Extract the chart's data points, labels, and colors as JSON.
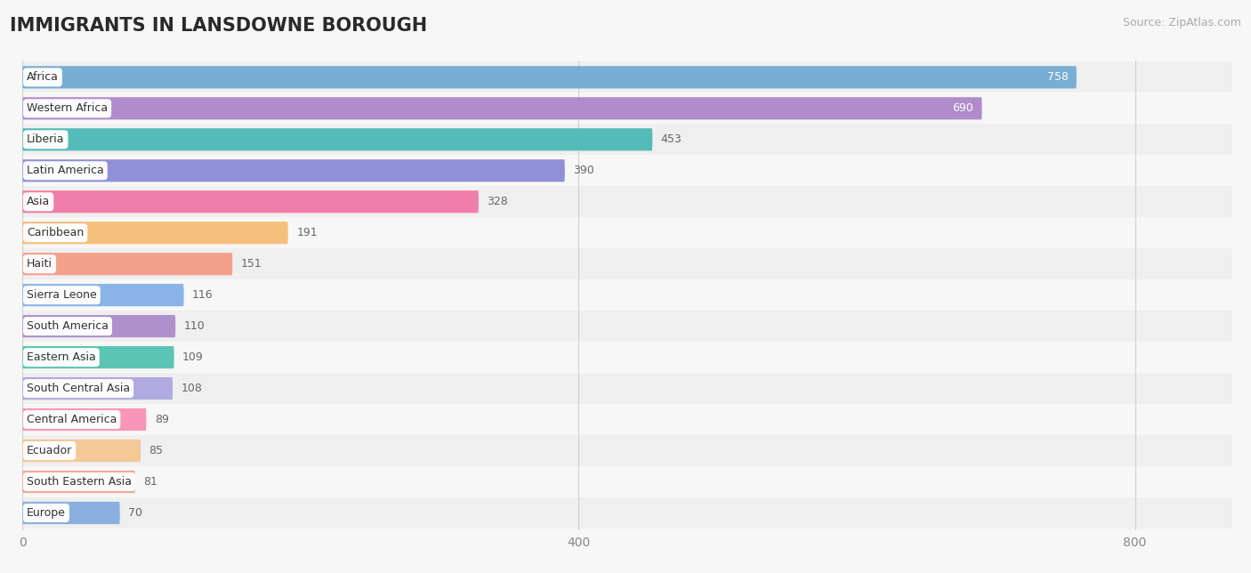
{
  "title": "IMMIGRANTS IN LANSDOWNE BOROUGH",
  "source": "Source: ZipAtlas.com",
  "categories": [
    "Africa",
    "Western Africa",
    "Liberia",
    "Latin America",
    "Asia",
    "Caribbean",
    "Haiti",
    "Sierra Leone",
    "South America",
    "Eastern Asia",
    "South Central Asia",
    "Central America",
    "Ecuador",
    "South Eastern Asia",
    "Europe"
  ],
  "values": [
    758,
    690,
    453,
    390,
    328,
    191,
    151,
    116,
    110,
    109,
    108,
    89,
    85,
    81,
    70
  ],
  "bar_colors": [
    "#78aed3",
    "#b08ccc",
    "#55bbb8",
    "#9090d8",
    "#f07eaa",
    "#f5c07c",
    "#f5a08c",
    "#8ab4e8",
    "#b090cc",
    "#5cc4b4",
    "#b0aae0",
    "#f895b8",
    "#f5c898",
    "#f2a898",
    "#8ab0e0"
  ],
  "background_color": "#f7f7f7",
  "row_colors_even": "#efefef",
  "row_colors_odd": "#f7f7f7",
  "title_fontsize": 15,
  "source_fontsize": 9,
  "bar_label_fontsize": 9,
  "value_label_fontsize": 9,
  "xlim_max": 870,
  "xticks": [
    0,
    400,
    800
  ],
  "white_text_threshold": 550
}
